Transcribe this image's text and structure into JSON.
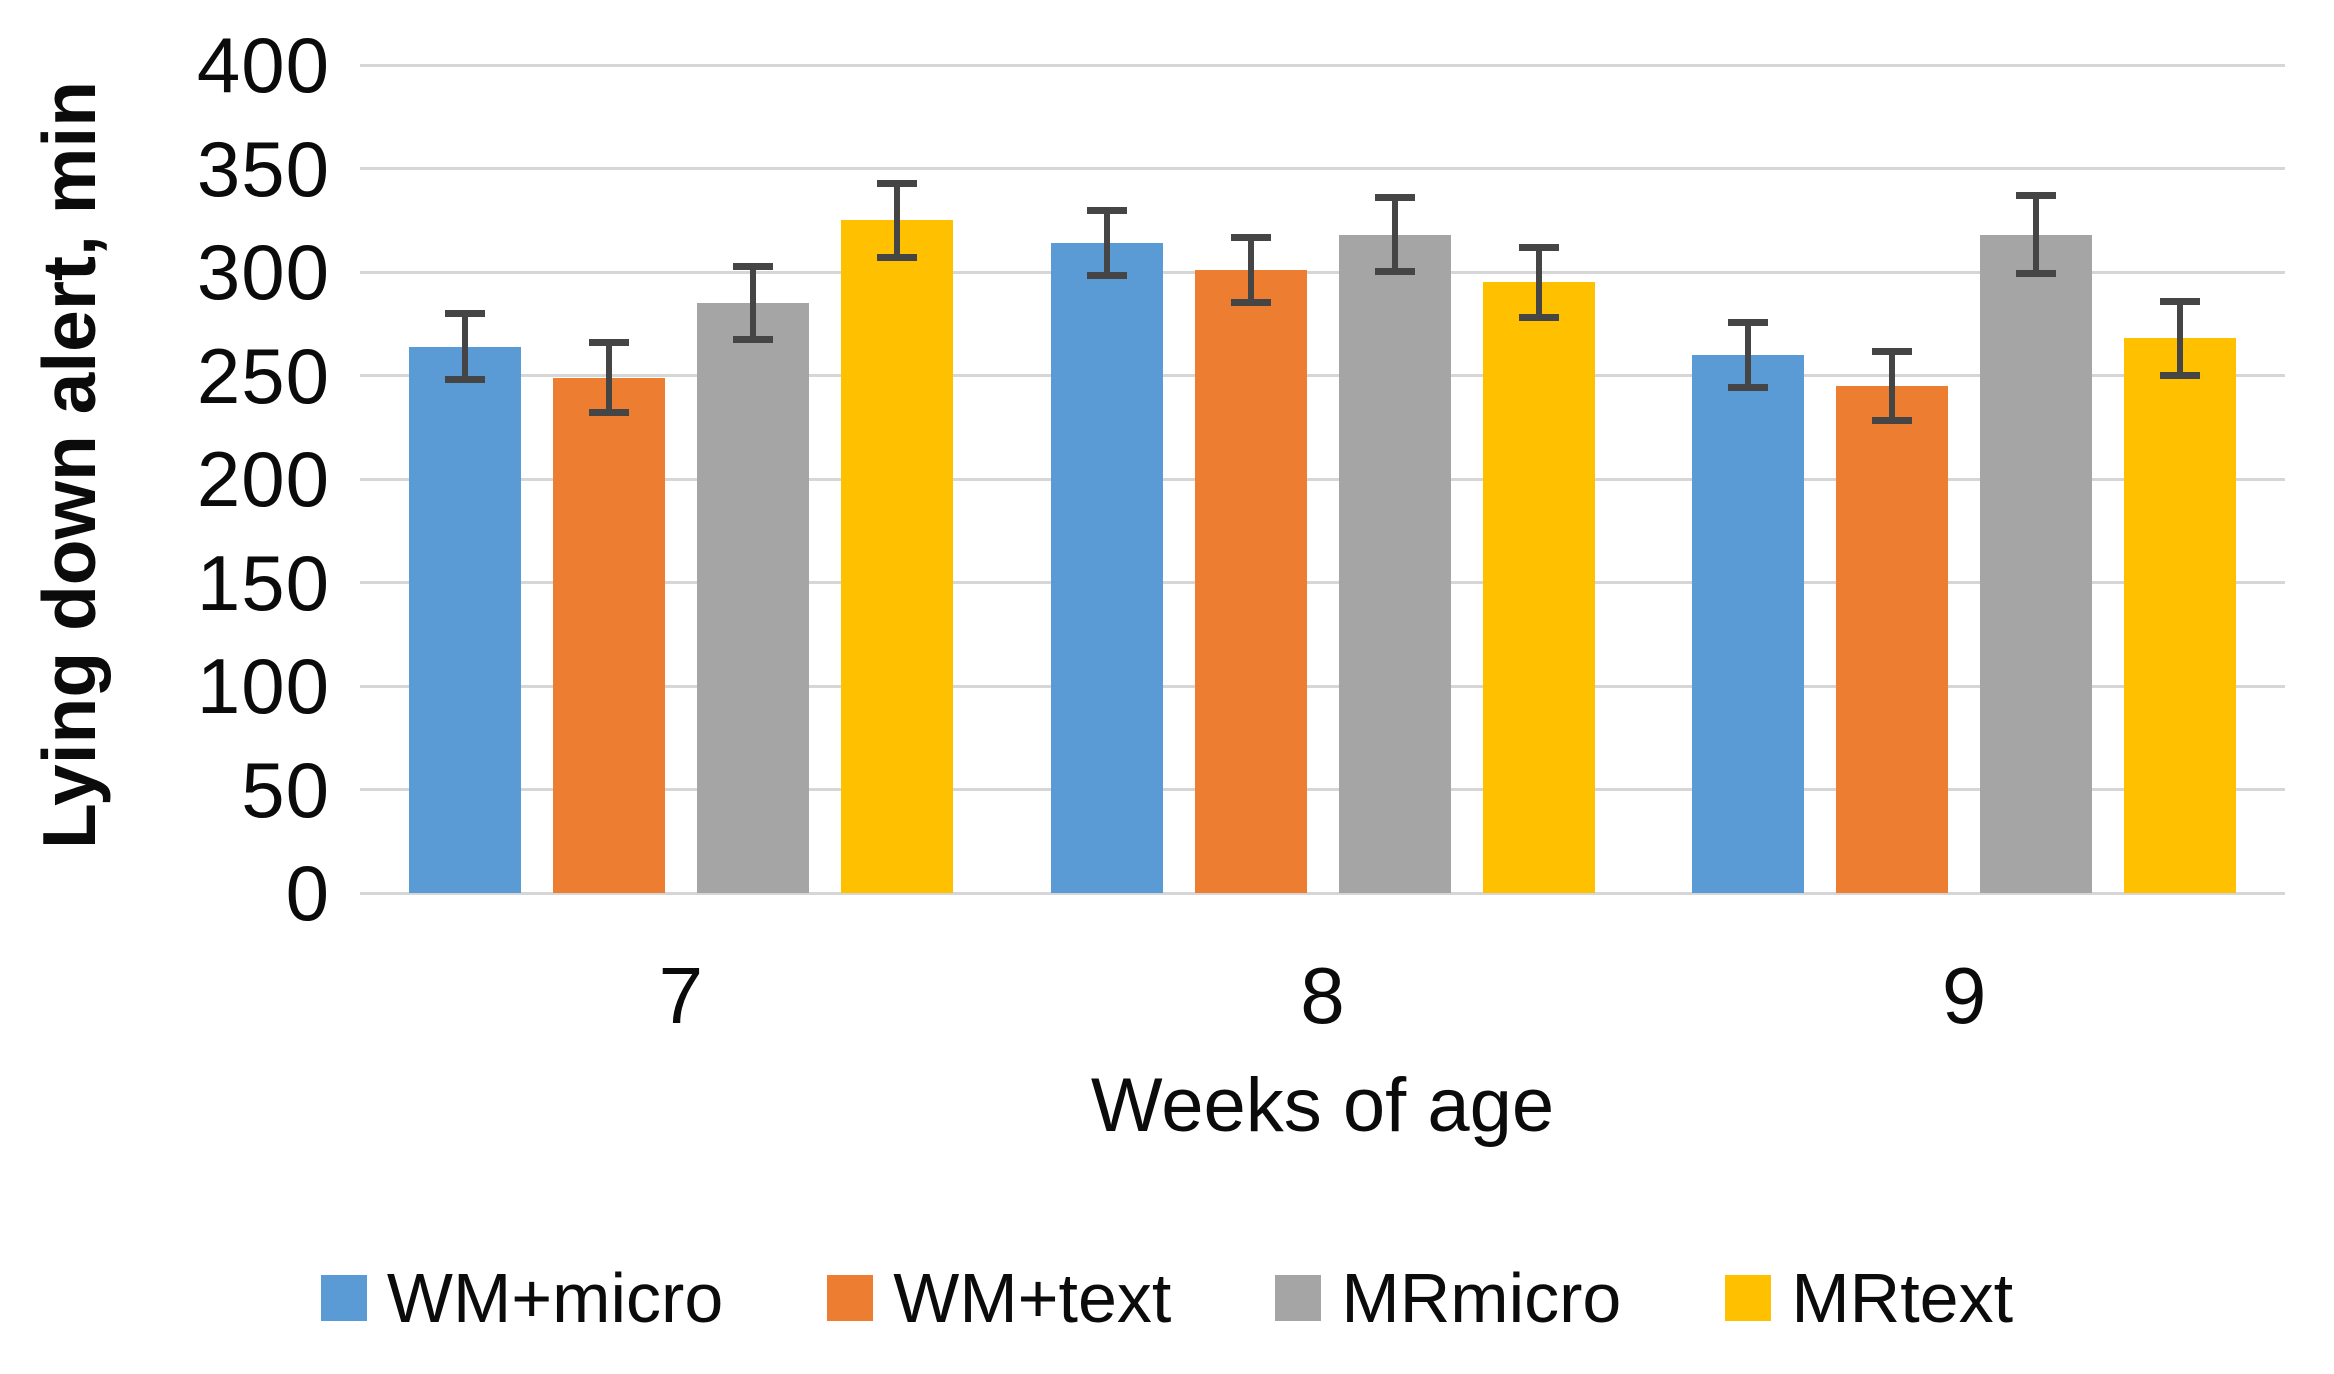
{
  "chart_data": {
    "type": "bar",
    "title": "",
    "categories": [
      "7",
      "8",
      "9"
    ],
    "series": [
      {
        "name": "WM+micro",
        "color": "#5B9BD5",
        "values": [
          264,
          314,
          260
        ],
        "errors": [
          16,
          16,
          16
        ]
      },
      {
        "name": "WM+text",
        "color": "#ED7D31",
        "values": [
          249,
          301,
          245
        ],
        "errors": [
          17,
          16,
          17
        ]
      },
      {
        "name": "MRmicro",
        "color": "#A5A5A5",
        "values": [
          285,
          318,
          318
        ],
        "errors": [
          18,
          18,
          19
        ]
      },
      {
        "name": "MRtext",
        "color": "#FFC000",
        "values": [
          325,
          295,
          268
        ],
        "errors": [
          18,
          17,
          18
        ]
      }
    ],
    "xlabel": "Weeks of age",
    "ylabel": "Lying down alert, min",
    "ylim": [
      0,
      400
    ],
    "ytick_step": 50,
    "yticks": [
      400,
      350,
      300,
      250,
      200,
      150,
      100,
      50,
      0
    ],
    "grid": true,
    "legend_position": "bottom",
    "colors": {
      "gridline": "#D6D6D6",
      "error_bar": "#454545",
      "text": "#0B0B0B",
      "background": "#FFFFFF"
    }
  }
}
